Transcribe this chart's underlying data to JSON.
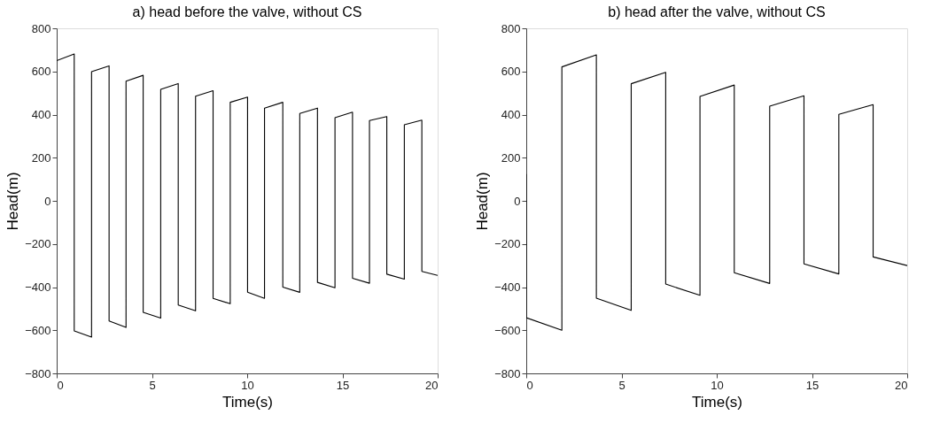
{
  "chart_data": [
    {
      "type": "line",
      "title": "a) head before the valve, without CS",
      "xlabel": "Time(s)",
      "ylabel": "Head(m)",
      "x": [
        0,
        0.92,
        0.92,
        1.83,
        1.83,
        2.75,
        2.75,
        3.64,
        3.64,
        4.54,
        4.54,
        5.46,
        5.46,
        6.38,
        6.38,
        7.29,
        7.29,
        8.21,
        8.21,
        9.11,
        9.11,
        10.02,
        10.02,
        10.91,
        10.91,
        11.87,
        11.87,
        12.76,
        12.76,
        13.69,
        13.69,
        14.61,
        14.61,
        15.53,
        15.53,
        16.42,
        16.42,
        17.33,
        17.33,
        18.25,
        18.25,
        19.17,
        19.17,
        20
      ],
      "series": [
        {
          "color": "#000000",
          "values": [
            650,
            681,
            -603,
            -632,
            599,
            626,
            -557,
            -587,
            555,
            582,
            -517,
            -544,
            517,
            544,
            -483,
            -510,
            485,
            511,
            -452,
            -477,
            457,
            481,
            -424,
            -452,
            430,
            457,
            -400,
            -424,
            405,
            430,
            -378,
            -403,
            386,
            411,
            -359,
            -382,
            372,
            391,
            -340,
            -363,
            353,
            374,
            -327,
            -346
          ]
        }
      ],
      "xlim": [
        0,
        20
      ],
      "ylim": [
        -800,
        800
      ],
      "xticks": [
        0,
        5,
        10,
        15,
        20
      ],
      "yticks": [
        -800,
        -600,
        -400,
        -200,
        0,
        200,
        400,
        600,
        800
      ]
    },
    {
      "type": "line",
      "title": "b) head after the valve, without CS",
      "xlabel": "Time(s)",
      "ylabel": "Head(m)",
      "x": [
        0,
        0,
        1.87,
        1.87,
        3.68,
        3.68,
        5.51,
        5.51,
        7.32,
        7.32,
        9.12,
        9.12,
        10.92,
        10.92,
        12.78,
        12.78,
        14.58,
        14.58,
        16.41,
        16.41,
        18.21,
        18.21,
        20
      ],
      "series": [
        {
          "color": "#000000",
          "values": [
            124,
            -542,
            -600,
            621,
            677,
            -451,
            -508,
            543,
            596,
            -386,
            -438,
            484,
            537,
            -333,
            -383,
            439,
            487,
            -292,
            -339,
            401,
            446,
            -260,
            -300
          ]
        }
      ],
      "xlim": [
        0,
        20
      ],
      "ylim": [
        -800,
        800
      ],
      "xticks": [
        0,
        5,
        10,
        15,
        20
      ],
      "yticks": [
        -800,
        -600,
        -400,
        -200,
        0,
        200,
        400,
        600,
        800
      ]
    }
  ]
}
